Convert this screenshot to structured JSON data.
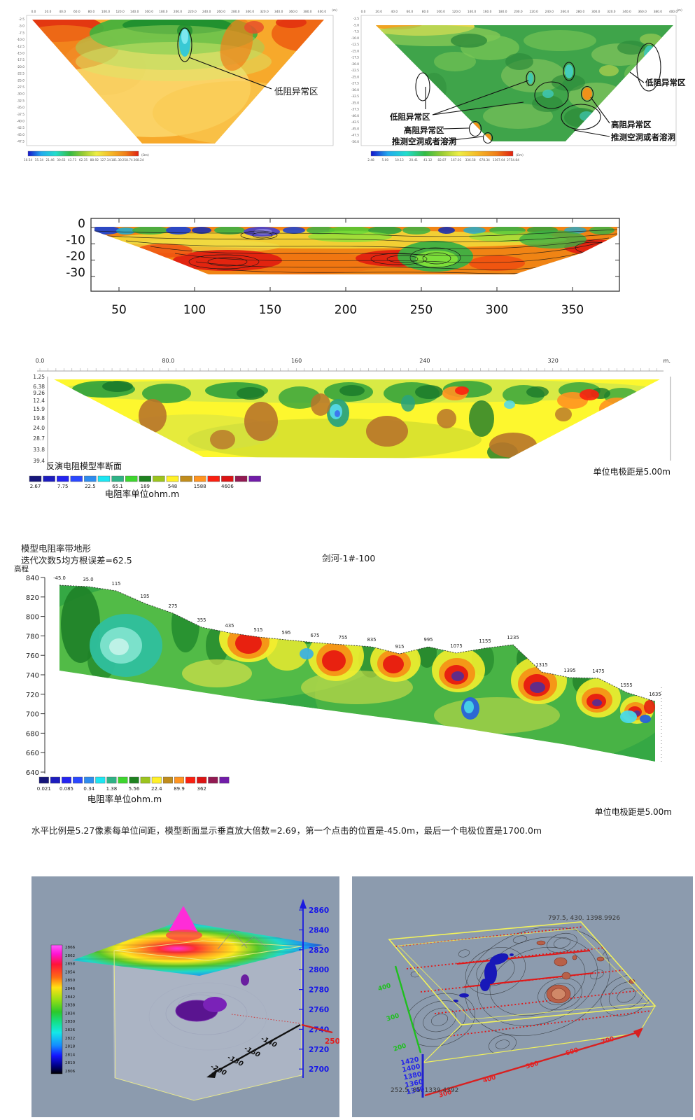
{
  "page_bg": "#ffffff",
  "chart_data": [
    {
      "id": "resistivity-section-1",
      "type": "heatmap",
      "x_unit": "(m)",
      "x_ticks": [
        "0.0",
        "20.0",
        "40.0",
        "60.0",
        "80.0",
        "100.0",
        "120.0",
        "140.0",
        "160.0",
        "180.0",
        "200.0",
        "220.0",
        "240.0",
        "260.0",
        "280.0",
        "300.0",
        "320.0",
        "340.0",
        "360.0",
        "380.0",
        "400.0"
      ],
      "y_ticks": [
        "-2.5",
        "-5.0",
        "-7.5",
        "-10.0",
        "-12.5",
        "-15.0",
        "-17.5",
        "-20.0",
        "-22.5",
        "-25.0",
        "-27.5",
        "-30.0",
        "-32.5",
        "-35.0",
        "-37.5",
        "-40.0",
        "-42.5",
        "-45.0",
        "-47.5"
      ],
      "annotation": "低阻异常区",
      "colorbar_values": [
        "10.54",
        "15.34",
        "21.46",
        "30.63",
        "43.71",
        "62.35",
        "88.92",
        "127.34",
        "181.30",
        "258.74",
        "368.24"
      ],
      "colorbar_unit": "(Ωm)"
    },
    {
      "id": "resistivity-section-2",
      "type": "heatmap",
      "x_unit": "(m)",
      "x_ticks": [
        "0.0",
        "20.0",
        "40.0",
        "60.0",
        "80.0",
        "100.0",
        "120.0",
        "140.0",
        "160.0",
        "180.0",
        "200.0",
        "220.0",
        "240.0",
        "260.0",
        "280.0",
        "300.0",
        "320.0",
        "340.0",
        "360.0",
        "380.0",
        "400.0"
      ],
      "y_ticks": [
        "-2.5",
        "-5.0",
        "-7.5",
        "-10.0",
        "-12.5",
        "-15.0",
        "-17.5",
        "-20.0",
        "-22.5",
        "-25.0",
        "-27.5",
        "-30.0",
        "-32.5",
        "-35.0",
        "-37.5",
        "-40.0",
        "-42.5",
        "-45.0",
        "-47.5",
        "-50.0"
      ],
      "labels": {
        "low_left": "低阻异常区",
        "high_left": "高阻异常区",
        "cave_left": "推测空洞或者溶洞",
        "low_right": "低阻异常区",
        "high_right": "高阻异常区",
        "cave_right": "推测空洞或者溶洞"
      },
      "colorbar_values": [
        "2.48",
        "5.00",
        "10.13",
        "20.41",
        "41.12",
        "82.87",
        "167.01",
        "336.58",
        "678.34",
        "1367.04",
        "2754.84"
      ],
      "colorbar_unit": "(Ωm)"
    },
    {
      "id": "contour-depth-section",
      "type": "heatmap",
      "x_ticks": [
        "50",
        "100",
        "150",
        "200",
        "250",
        "300",
        "350"
      ],
      "y_ticks": [
        "0",
        "-10",
        "-20",
        "-30"
      ]
    },
    {
      "id": "inverse-model-section",
      "type": "heatmap",
      "x_ticks": [
        "0.0",
        "80.0",
        "160",
        "240",
        "320"
      ],
      "x_unit": "m.",
      "depth_ticks": [
        "1.25",
        "6.38",
        "9.26",
        "12.4",
        "15.9",
        "19.8",
        "24.0",
        "28.7",
        "33.8",
        "39.4"
      ],
      "caption": "反演电阻模型率断面",
      "legend_values": [
        "2.67",
        "7.75",
        "22.5",
        "65.1",
        "189",
        "548",
        "1588",
        "4606"
      ],
      "legend_unit_label": "电阻率单位ohm.m",
      "electrode_note": "单位电极距是5.00m",
      "palette": [
        "#16167A",
        "#1D1DBE",
        "#2424F0",
        "#2B48FF",
        "#2E8CEE",
        "#1CE6F2",
        "#2EB286",
        "#3ED62E",
        "#1E8220",
        "#9CC41E",
        "#FFF028",
        "#C08C1C",
        "#FF9420",
        "#FA2010",
        "#DC1414",
        "#921A52",
        "#711CA8"
      ]
    },
    {
      "id": "model-with-topography",
      "type": "heatmap",
      "title_line1": "模型电阻率带地形",
      "title_line2": "迭代次数5均方根误差=62.5",
      "survey_label": "剑河-1#-100",
      "elevation_axis_label": "高程",
      "elevation_ticks": [
        "840",
        "820",
        "800",
        "780",
        "760",
        "740",
        "720",
        "700",
        "680",
        "660",
        "640"
      ],
      "surface_positions": [
        "-45.0",
        "35.0",
        "115",
        "195",
        "275",
        "355",
        "435",
        "515",
        "595",
        "675",
        "755",
        "835",
        "915",
        "995",
        "1075",
        "1155",
        "1235",
        "1315",
        "1395",
        "1475",
        "1555",
        "1635"
      ],
      "legend_values": [
        "0.021",
        "0.085",
        "0.34",
        "1.38",
        "5.56",
        "22.4",
        "89.9",
        "362"
      ],
      "legend_unit_label": "电阻率单位ohm.m",
      "electrode_note": "单位电极距是5.00m",
      "footnote": "水平比例是5.27像素每单位间距，模型断面显示垂直放大倍数=2.69，第一个点击的位置是-45.0m，最后一个电极位置是1700.0m",
      "palette": [
        "#16167A",
        "#1D1DBE",
        "#2424F0",
        "#2B48FF",
        "#2E8CEE",
        "#1CE6F2",
        "#2EB286",
        "#3ED62E",
        "#1E8220",
        "#9CC41E",
        "#FFF028",
        "#C08C1C",
        "#FF9420",
        "#FA2010",
        "#DC1414",
        "#921A52",
        "#711CA8"
      ]
    },
    {
      "id": "block-3d-view",
      "type": "heatmap",
      "colorbar_values": [
        "2866",
        "2862",
        "2858",
        "2854",
        "2850",
        "2846",
        "2842",
        "2838",
        "2834",
        "2830",
        "2826",
        "2822",
        "2818",
        "2814",
        "2810",
        "2806"
      ],
      "z_ticks": [
        "2860",
        "2840",
        "2820",
        "2800",
        "2780",
        "2760",
        "2740",
        "2720",
        "2700"
      ],
      "x_ticks": [
        "-140",
        "-160",
        "-180",
        "-200"
      ],
      "red_axis_label": "250"
    },
    {
      "id": "slab-3d-view",
      "type": "heatmap",
      "corner_label_top": "797.5, 430. 1398.9926",
      "corner_label_bottom": "252.5, 85. 1339.4392",
      "elev_ticks": [
        "1420",
        "1400",
        "1380",
        "1360",
        "1340"
      ],
      "x_ticks": [
        "300",
        "400",
        "500",
        "600",
        "700"
      ],
      "y_ticks": [
        "400",
        "300",
        "200"
      ]
    }
  ]
}
